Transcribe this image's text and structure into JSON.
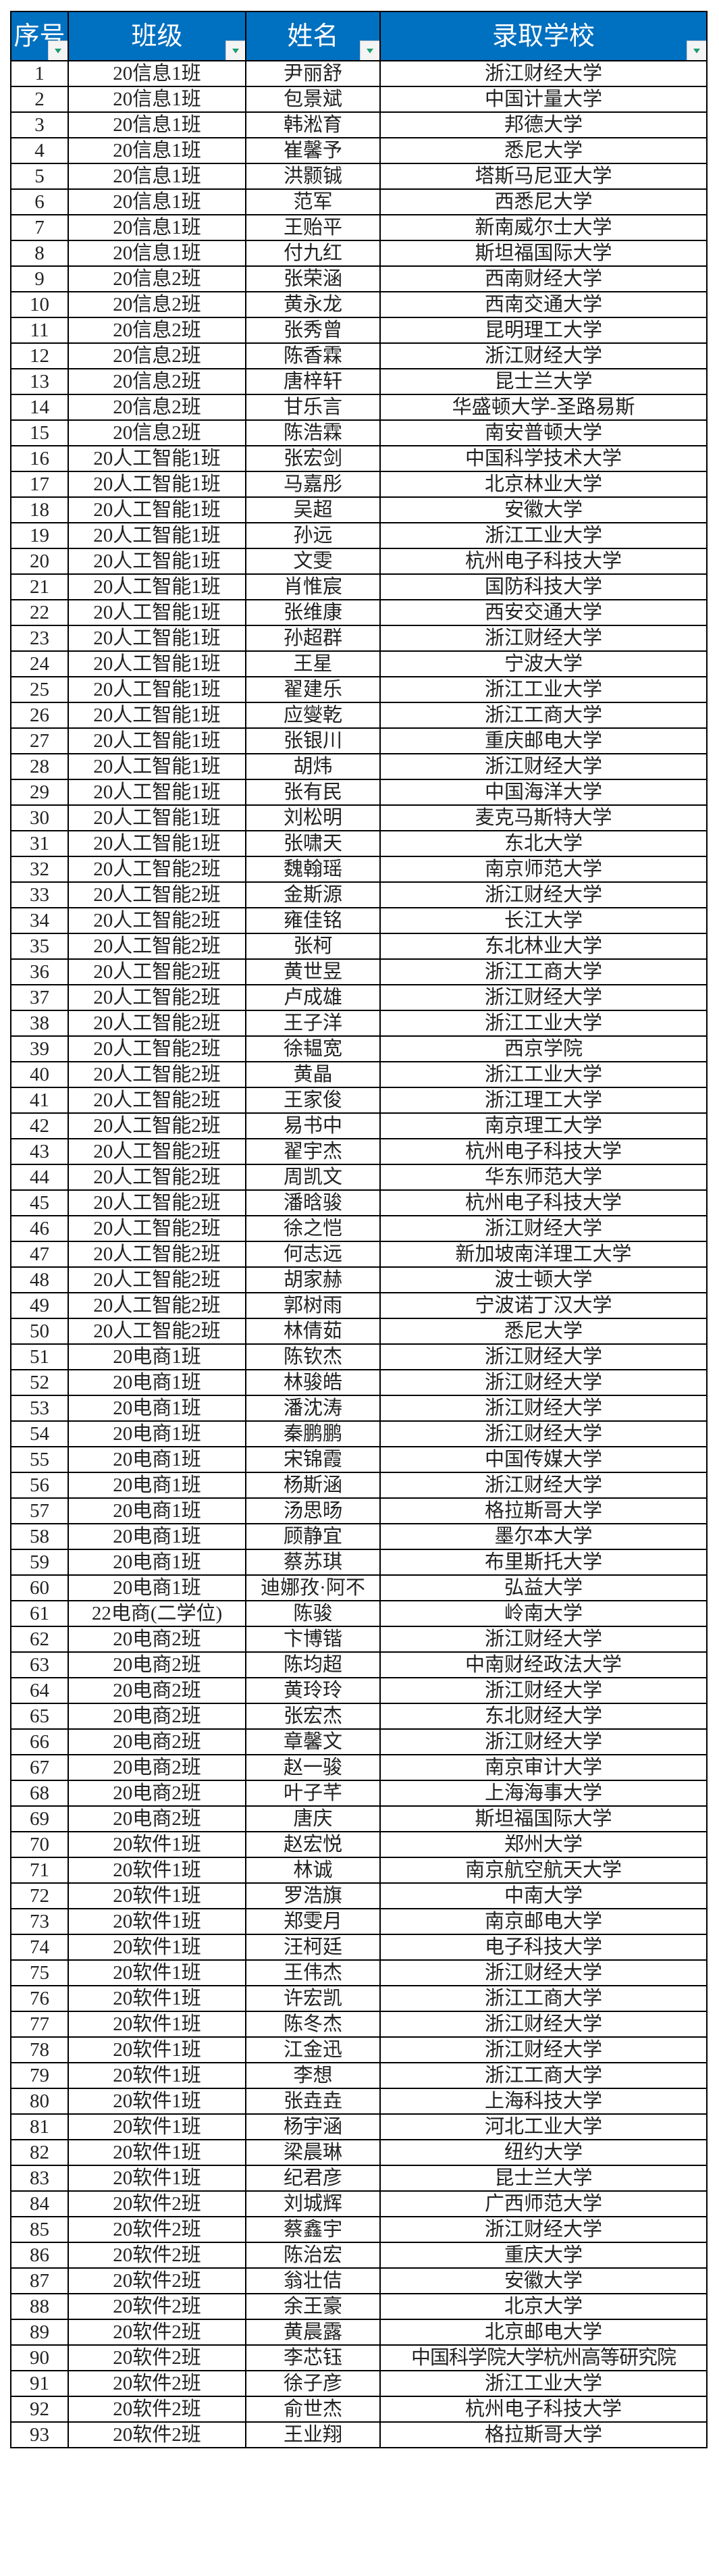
{
  "colors": {
    "header_bg": "#0070c0",
    "header_text": "#ffffff",
    "filter_arrow": "#1a9c6e"
  },
  "headers": [
    "序号",
    "班级",
    "姓名",
    "录取学校"
  ],
  "filter_icon": "dropdown-filter-icon",
  "rows": [
    [
      "1",
      "20信息1班",
      "尹丽舒",
      "浙江财经大学"
    ],
    [
      "2",
      "20信息1班",
      "包景斌",
      "中国计量大学"
    ],
    [
      "3",
      "20信息1班",
      "韩淞育",
      "邦德大学"
    ],
    [
      "4",
      "20信息1班",
      "崔馨予",
      "悉尼大学"
    ],
    [
      "5",
      "20信息1班",
      "洪颢铖",
      "塔斯马尼亚大学"
    ],
    [
      "6",
      "20信息1班",
      "范军",
      "西悉尼大学"
    ],
    [
      "7",
      "20信息1班",
      "王贻平",
      "新南威尔士大学"
    ],
    [
      "8",
      "20信息1班",
      "付九红",
      "斯坦福国际大学"
    ],
    [
      "9",
      "20信息2班",
      "张荣涵",
      "西南财经大学"
    ],
    [
      "10",
      "20信息2班",
      "黄永龙",
      "西南交通大学"
    ],
    [
      "11",
      "20信息2班",
      "张秀曾",
      "昆明理工大学"
    ],
    [
      "12",
      "20信息2班",
      "陈香霖",
      "浙江财经大学"
    ],
    [
      "13",
      "20信息2班",
      "唐梓轩",
      "昆士兰大学"
    ],
    [
      "14",
      "20信息2班",
      "甘乐言",
      "华盛顿大学-圣路易斯"
    ],
    [
      "15",
      "20信息2班",
      "陈浩霖",
      "南安普顿大学"
    ],
    [
      "16",
      "20人工智能1班",
      "张宏剑",
      "中国科学技术大学"
    ],
    [
      "17",
      "20人工智能1班",
      "马嘉彤",
      "北京林业大学"
    ],
    [
      "18",
      "20人工智能1班",
      "吴超",
      "安徽大学"
    ],
    [
      "19",
      "20人工智能1班",
      "孙远",
      "浙江工业大学"
    ],
    [
      "20",
      "20人工智能1班",
      "文雯",
      "杭州电子科技大学"
    ],
    [
      "21",
      "20人工智能1班",
      "肖惟宸",
      "国防科技大学"
    ],
    [
      "22",
      "20人工智能1班",
      "张维康",
      "西安交通大学"
    ],
    [
      "23",
      "20人工智能1班",
      "孙超群",
      "浙江财经大学"
    ],
    [
      "24",
      "20人工智能1班",
      "王星",
      "宁波大学"
    ],
    [
      "25",
      "20人工智能1班",
      "翟建乐",
      "浙江工业大学"
    ],
    [
      "26",
      "20人工智能1班",
      "应燮乾",
      "浙江工商大学"
    ],
    [
      "27",
      "20人工智能1班",
      "张银川",
      "重庆邮电大学"
    ],
    [
      "28",
      "20人工智能1班",
      "胡炜",
      "浙江财经大学"
    ],
    [
      "29",
      "20人工智能1班",
      "张有民",
      "中国海洋大学"
    ],
    [
      "30",
      "20人工智能1班",
      "刘松明",
      "麦克马斯特大学"
    ],
    [
      "31",
      "20人工智能1班",
      "张啸天",
      "东北大学"
    ],
    [
      "32",
      "20人工智能2班",
      "魏翰瑶",
      "南京师范大学"
    ],
    [
      "33",
      "20人工智能2班",
      "金斯源",
      "浙江财经大学"
    ],
    [
      "34",
      "20人工智能2班",
      "雍佳铭",
      "长江大学"
    ],
    [
      "35",
      "20人工智能2班",
      "张柯",
      "东北林业大学"
    ],
    [
      "36",
      "20人工智能2班",
      "黄世昱",
      "浙江工商大学"
    ],
    [
      "37",
      "20人工智能2班",
      "卢成雄",
      "浙江财经大学"
    ],
    [
      "38",
      "20人工智能2班",
      "王子洋",
      "浙江工业大学"
    ],
    [
      "39",
      "20人工智能2班",
      "徐韫宽",
      "西京学院"
    ],
    [
      "40",
      "20人工智能2班",
      "黄晶",
      "浙江工业大学"
    ],
    [
      "41",
      "20人工智能2班",
      "王家俊",
      "浙江理工大学"
    ],
    [
      "42",
      "20人工智能2班",
      "易书中",
      "南京理工大学"
    ],
    [
      "43",
      "20人工智能2班",
      "翟宇杰",
      "杭州电子科技大学"
    ],
    [
      "44",
      "20人工智能2班",
      "周凯文",
      "华东师范大学"
    ],
    [
      "45",
      "20人工智能2班",
      "潘晗骏",
      "杭州电子科技大学"
    ],
    [
      "46",
      "20人工智能2班",
      "徐之恺",
      "浙江财经大学"
    ],
    [
      "47",
      "20人工智能2班",
      "何志远",
      "新加坡南洋理工大学"
    ],
    [
      "48",
      "20人工智能2班",
      "胡家赫",
      "波士顿大学"
    ],
    [
      "49",
      "20人工智能2班",
      "郭树雨",
      "宁波诺丁汉大学"
    ],
    [
      "50",
      "20人工智能2班",
      "林倩茹",
      "悉尼大学"
    ],
    [
      "51",
      "20电商1班",
      "陈钦杰",
      "浙江财经大学"
    ],
    [
      "52",
      "20电商1班",
      "林骏皓",
      "浙江财经大学"
    ],
    [
      "53",
      "20电商1班",
      "潘沈涛",
      "浙江财经大学"
    ],
    [
      "54",
      "20电商1班",
      "秦鹏鹏",
      "浙江财经大学"
    ],
    [
      "55",
      "20电商1班",
      "宋锦霞",
      "中国传媒大学"
    ],
    [
      "56",
      "20电商1班",
      "杨斯涵",
      "浙江财经大学"
    ],
    [
      "57",
      "20电商1班",
      "汤思旸",
      "格拉斯哥大学"
    ],
    [
      "58",
      "20电商1班",
      "顾静宜",
      "墨尔本大学"
    ],
    [
      "59",
      "20电商1班",
      "蔡苏琪",
      "布里斯托大学"
    ],
    [
      "60",
      "20电商1班",
      "迪娜孜·阿不",
      "弘益大学"
    ],
    [
      "61",
      "22电商(二学位)",
      "陈骏",
      "岭南大学"
    ],
    [
      "62",
      "20电商2班",
      "卞博锴",
      "浙江财经大学"
    ],
    [
      "63",
      "20电商2班",
      "陈均超",
      "中南财经政法大学"
    ],
    [
      "64",
      "20电商2班",
      "黄玲玲",
      "浙江财经大学"
    ],
    [
      "65",
      "20电商2班",
      "张宏杰",
      "东北财经大学"
    ],
    [
      "66",
      "20电商2班",
      "章馨文",
      "浙江财经大学"
    ],
    [
      "67",
      "20电商2班",
      "赵一骏",
      "南京审计大学"
    ],
    [
      "68",
      "20电商2班",
      "叶子芊",
      "上海海事大学"
    ],
    [
      "69",
      "20电商2班",
      "唐庆",
      "斯坦福国际大学"
    ],
    [
      "70",
      "20软件1班",
      "赵宏悦",
      "郑州大学"
    ],
    [
      "71",
      "20软件1班",
      "林诚",
      "南京航空航天大学"
    ],
    [
      "72",
      "20软件1班",
      "罗浩旗",
      "中南大学"
    ],
    [
      "73",
      "20软件1班",
      "郑雯月",
      "南京邮电大学"
    ],
    [
      "74",
      "20软件1班",
      "汪柯廷",
      "电子科技大学"
    ],
    [
      "75",
      "20软件1班",
      "王伟杰",
      "浙江财经大学"
    ],
    [
      "76",
      "20软件1班",
      "许宏凯",
      "浙江工商大学"
    ],
    [
      "77",
      "20软件1班",
      "陈冬杰",
      "浙江财经大学"
    ],
    [
      "78",
      "20软件1班",
      "江金迅",
      "浙江财经大学"
    ],
    [
      "79",
      "20软件1班",
      "李想",
      "浙江工商大学"
    ],
    [
      "80",
      "20软件1班",
      "张垚垚",
      "上海科技大学"
    ],
    [
      "81",
      "20软件1班",
      "杨宇涵",
      "河北工业大学"
    ],
    [
      "82",
      "20软件1班",
      "梁晨琳",
      "纽约大学"
    ],
    [
      "83",
      "20软件1班",
      "纪君彦",
      "昆士兰大学"
    ],
    [
      "84",
      "20软件2班",
      "刘城辉",
      "广西师范大学"
    ],
    [
      "85",
      "20软件2班",
      "蔡鑫宇",
      "浙江财经大学"
    ],
    [
      "86",
      "20软件2班",
      "陈治宏",
      "重庆大学"
    ],
    [
      "87",
      "20软件2班",
      "翁壮佶",
      "安徽大学"
    ],
    [
      "88",
      "20软件2班",
      "余王豪",
      "北京大学"
    ],
    [
      "89",
      "20软件2班",
      "黄晨露",
      "北京邮电大学"
    ],
    [
      "90",
      "20软件2班",
      "李芯钰",
      "中国科学院大学杭州高等研究院"
    ],
    [
      "91",
      "20软件2班",
      "徐子彦",
      "浙江工业大学"
    ],
    [
      "92",
      "20软件2班",
      "俞世杰",
      "杭州电子科技大学"
    ],
    [
      "93",
      "20软件2班",
      "王业翔",
      "格拉斯哥大学"
    ]
  ]
}
